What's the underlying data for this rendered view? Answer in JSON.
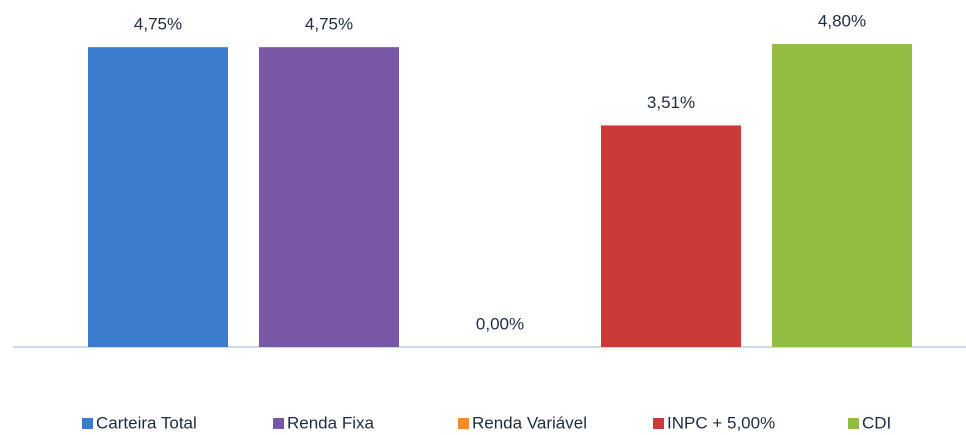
{
  "chart_data": {
    "type": "bar",
    "series": [
      {
        "name": "Carteira Total",
        "color": "#3b7cce",
        "values": [
          4.75
        ],
        "value_labels": [
          "4,75%"
        ]
      },
      {
        "name": "Renda Fixa",
        "color": "#7857a6",
        "values": [
          4.75
        ],
        "value_labels": [
          "4,75%"
        ]
      },
      {
        "name": "Renda Variável",
        "color": "#f58b2a",
        "values": [
          0
        ],
        "value_labels": [
          "0,00%"
        ]
      },
      {
        "name": "INPC + 5,00%",
        "color": "#cc3a37",
        "values": [
          3.51
        ],
        "value_labels": [
          "3,51%"
        ]
      },
      {
        "name": "CDI",
        "color": "#93bd40",
        "values": [
          4.8
        ],
        "value_labels": [
          "4,80%"
        ]
      }
    ]
  }
}
